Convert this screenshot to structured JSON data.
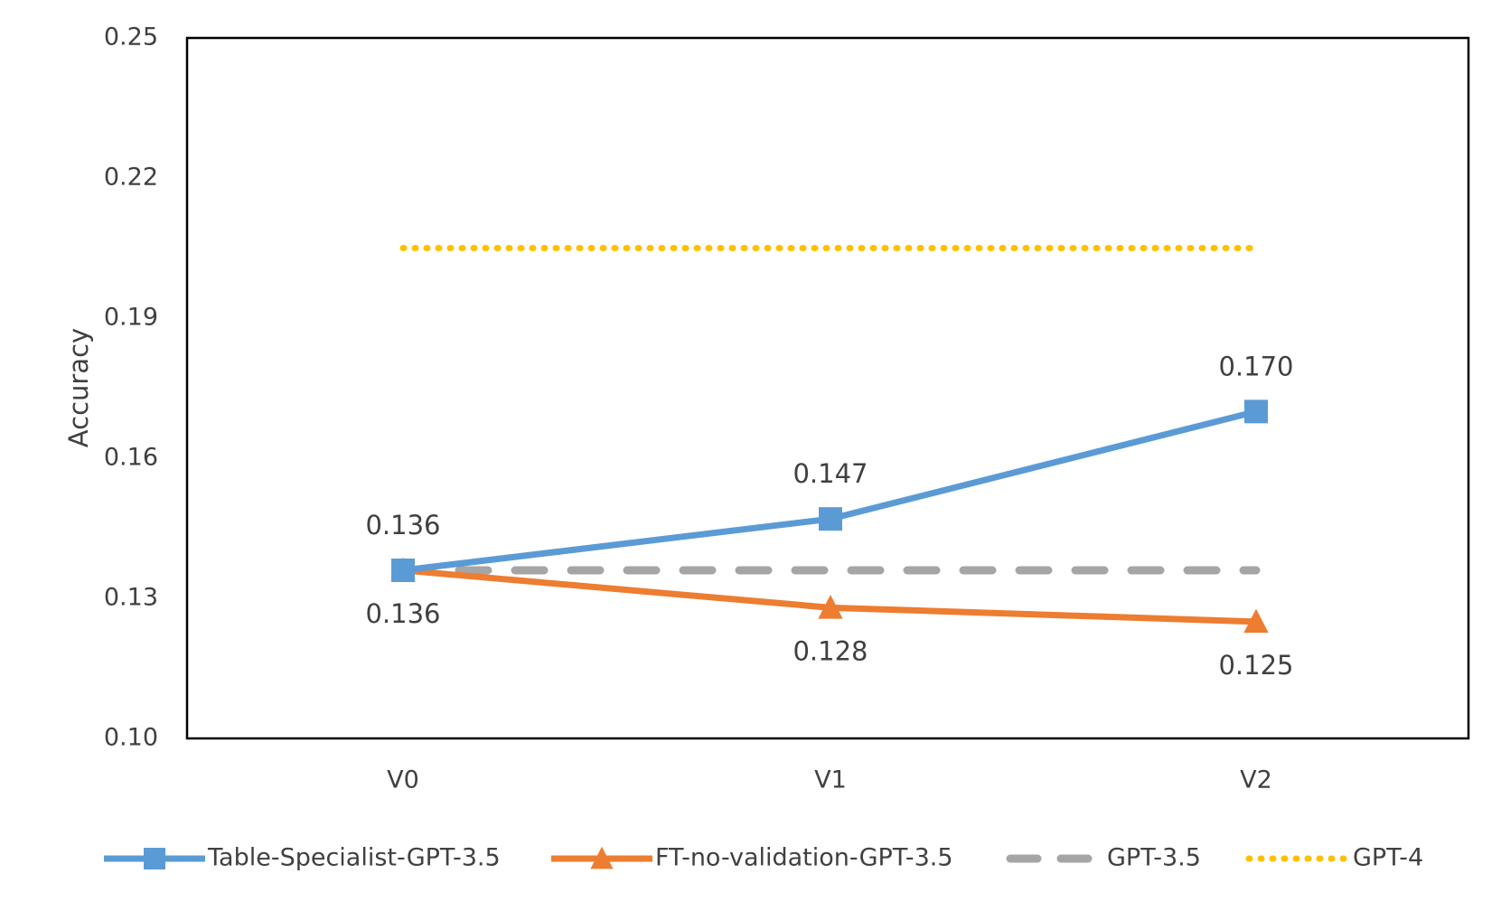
{
  "chart_data": {
    "type": "line",
    "title": "",
    "xlabel": "",
    "ylabel": "Accuracy",
    "categories": [
      "V0",
      "V1",
      "V2"
    ],
    "ylim": [
      0.1,
      0.25
    ],
    "yticks": [
      "0.10",
      "0.13",
      "0.16",
      "0.19",
      "0.22",
      "0.25"
    ],
    "grid": false,
    "legend_position": "bottom",
    "series": [
      {
        "name": "Table-Specialist-GPT-3.5",
        "values": [
          0.136,
          0.147,
          0.17
        ],
        "labels": [
          "0.136",
          "0.147",
          "0.170"
        ],
        "label_position": "above",
        "color": "#5B9BD5",
        "marker": "square",
        "dash": "solid"
      },
      {
        "name": "FT-no-validation-GPT-3.5",
        "values": [
          0.136,
          0.128,
          0.125
        ],
        "labels": [
          "0.136",
          "0.128",
          "0.125"
        ],
        "label_position": "below",
        "color": "#ED7D31",
        "marker": "triangle",
        "dash": "solid"
      },
      {
        "name": "GPT-3.5",
        "values": [
          0.136,
          0.136,
          0.136
        ],
        "color": "#A5A5A5",
        "marker": "none",
        "dash": "dashed"
      },
      {
        "name": "GPT-4",
        "values": [
          0.205,
          0.205,
          0.205
        ],
        "color": "#FFC000",
        "marker": "none",
        "dash": "dotted"
      }
    ]
  }
}
